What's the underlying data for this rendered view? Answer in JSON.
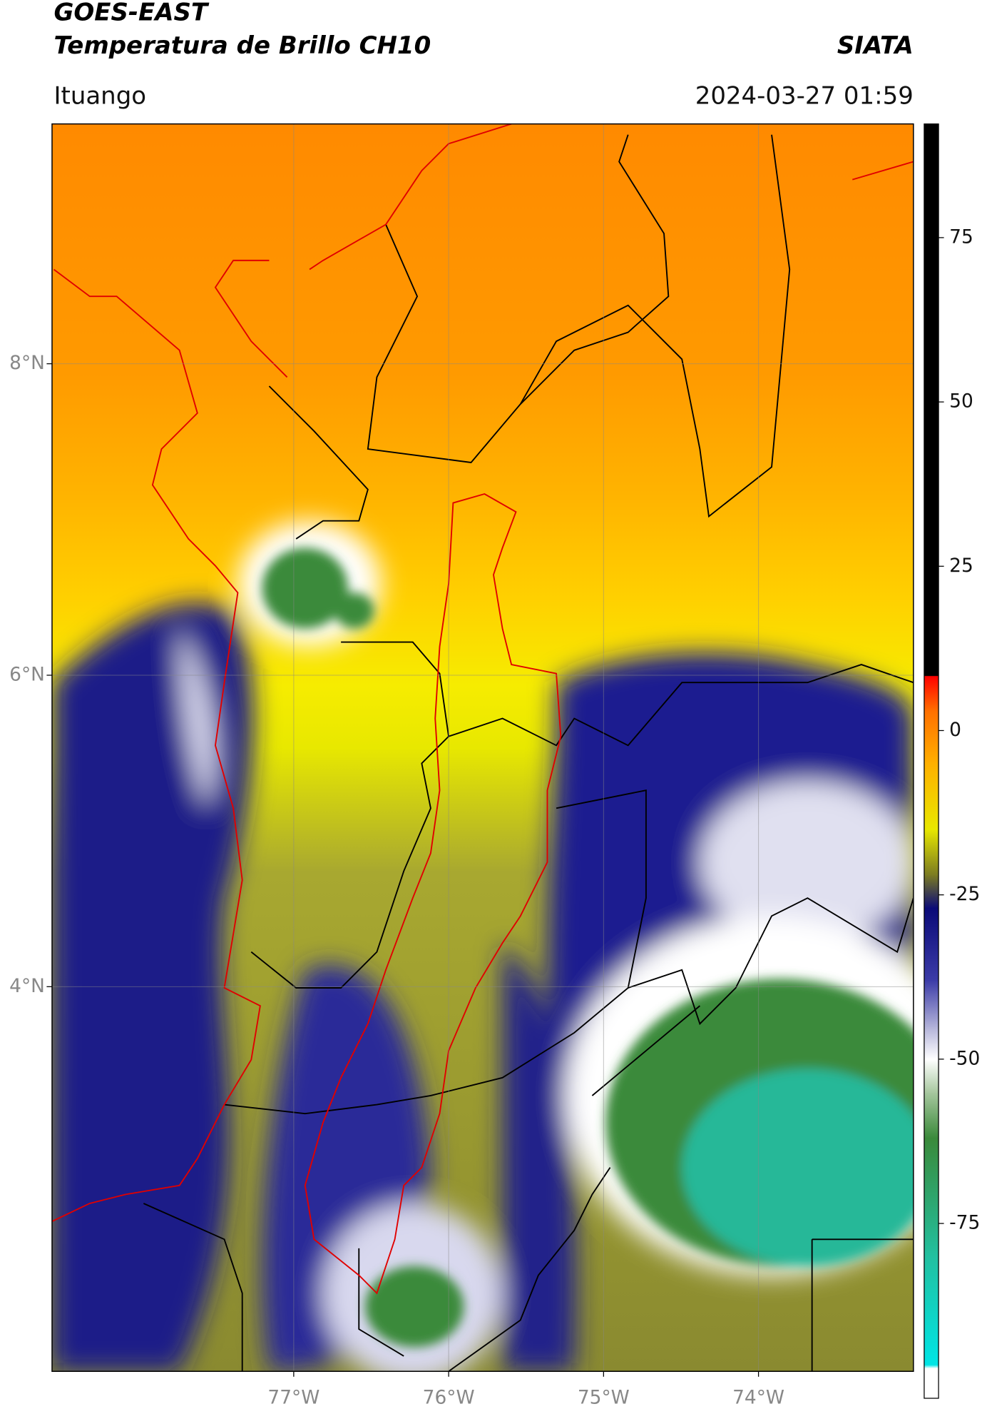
{
  "header": {
    "title": "GOES-EAST",
    "subtitle": "Temperatura de Brillo CH10",
    "source": "SIATA",
    "location": "Ituango",
    "datetime": "2024-03-27 01:59"
  },
  "map": {
    "xlim": [
      -78.56,
      -73.0
    ],
    "ylim": [
      1.53,
      9.54
    ],
    "grid": true,
    "xticks": [
      {
        "value": -77,
        "label": "77°W"
      },
      {
        "value": -76,
        "label": "76°W"
      },
      {
        "value": -75,
        "label": "75°W"
      },
      {
        "value": -74,
        "label": "74°W"
      }
    ],
    "yticks": [
      {
        "value": 4,
        "label": "4°N"
      },
      {
        "value": 6,
        "label": "6°N"
      },
      {
        "value": 8,
        "label": "8°N"
      }
    ]
  },
  "colorbar": {
    "lim": [
      -101.6,
      92.3
    ],
    "ticks": [
      -75,
      -50,
      -25,
      0,
      25,
      50,
      75
    ],
    "stops": [
      {
        "value": -101.6,
        "color": "#ffffff"
      },
      {
        "value": -97,
        "color": "#ffffff"
      },
      {
        "value": -96.5,
        "color": "#00e5e5"
      },
      {
        "value": -80,
        "color": "#22c0a0"
      },
      {
        "value": -62,
        "color": "#3a8a3a"
      },
      {
        "value": -55,
        "color": "#a8c8a0"
      },
      {
        "value": -50,
        "color": "#ffffff"
      },
      {
        "value": -45,
        "color": "#b0b0d8"
      },
      {
        "value": -38,
        "color": "#3c3ca8"
      },
      {
        "value": -27,
        "color": "#0a0a78"
      },
      {
        "value": -22,
        "color": "#7a7a22"
      },
      {
        "value": -15,
        "color": "#e8e800"
      },
      {
        "value": -5,
        "color": "#ffb000"
      },
      {
        "value": 3,
        "color": "#ff7000"
      },
      {
        "value": 8.3,
        "color": "#ff0000"
      },
      {
        "value": 8.4,
        "color": "#000000"
      },
      {
        "value": 92.3,
        "color": "#000000"
      }
    ]
  }
}
